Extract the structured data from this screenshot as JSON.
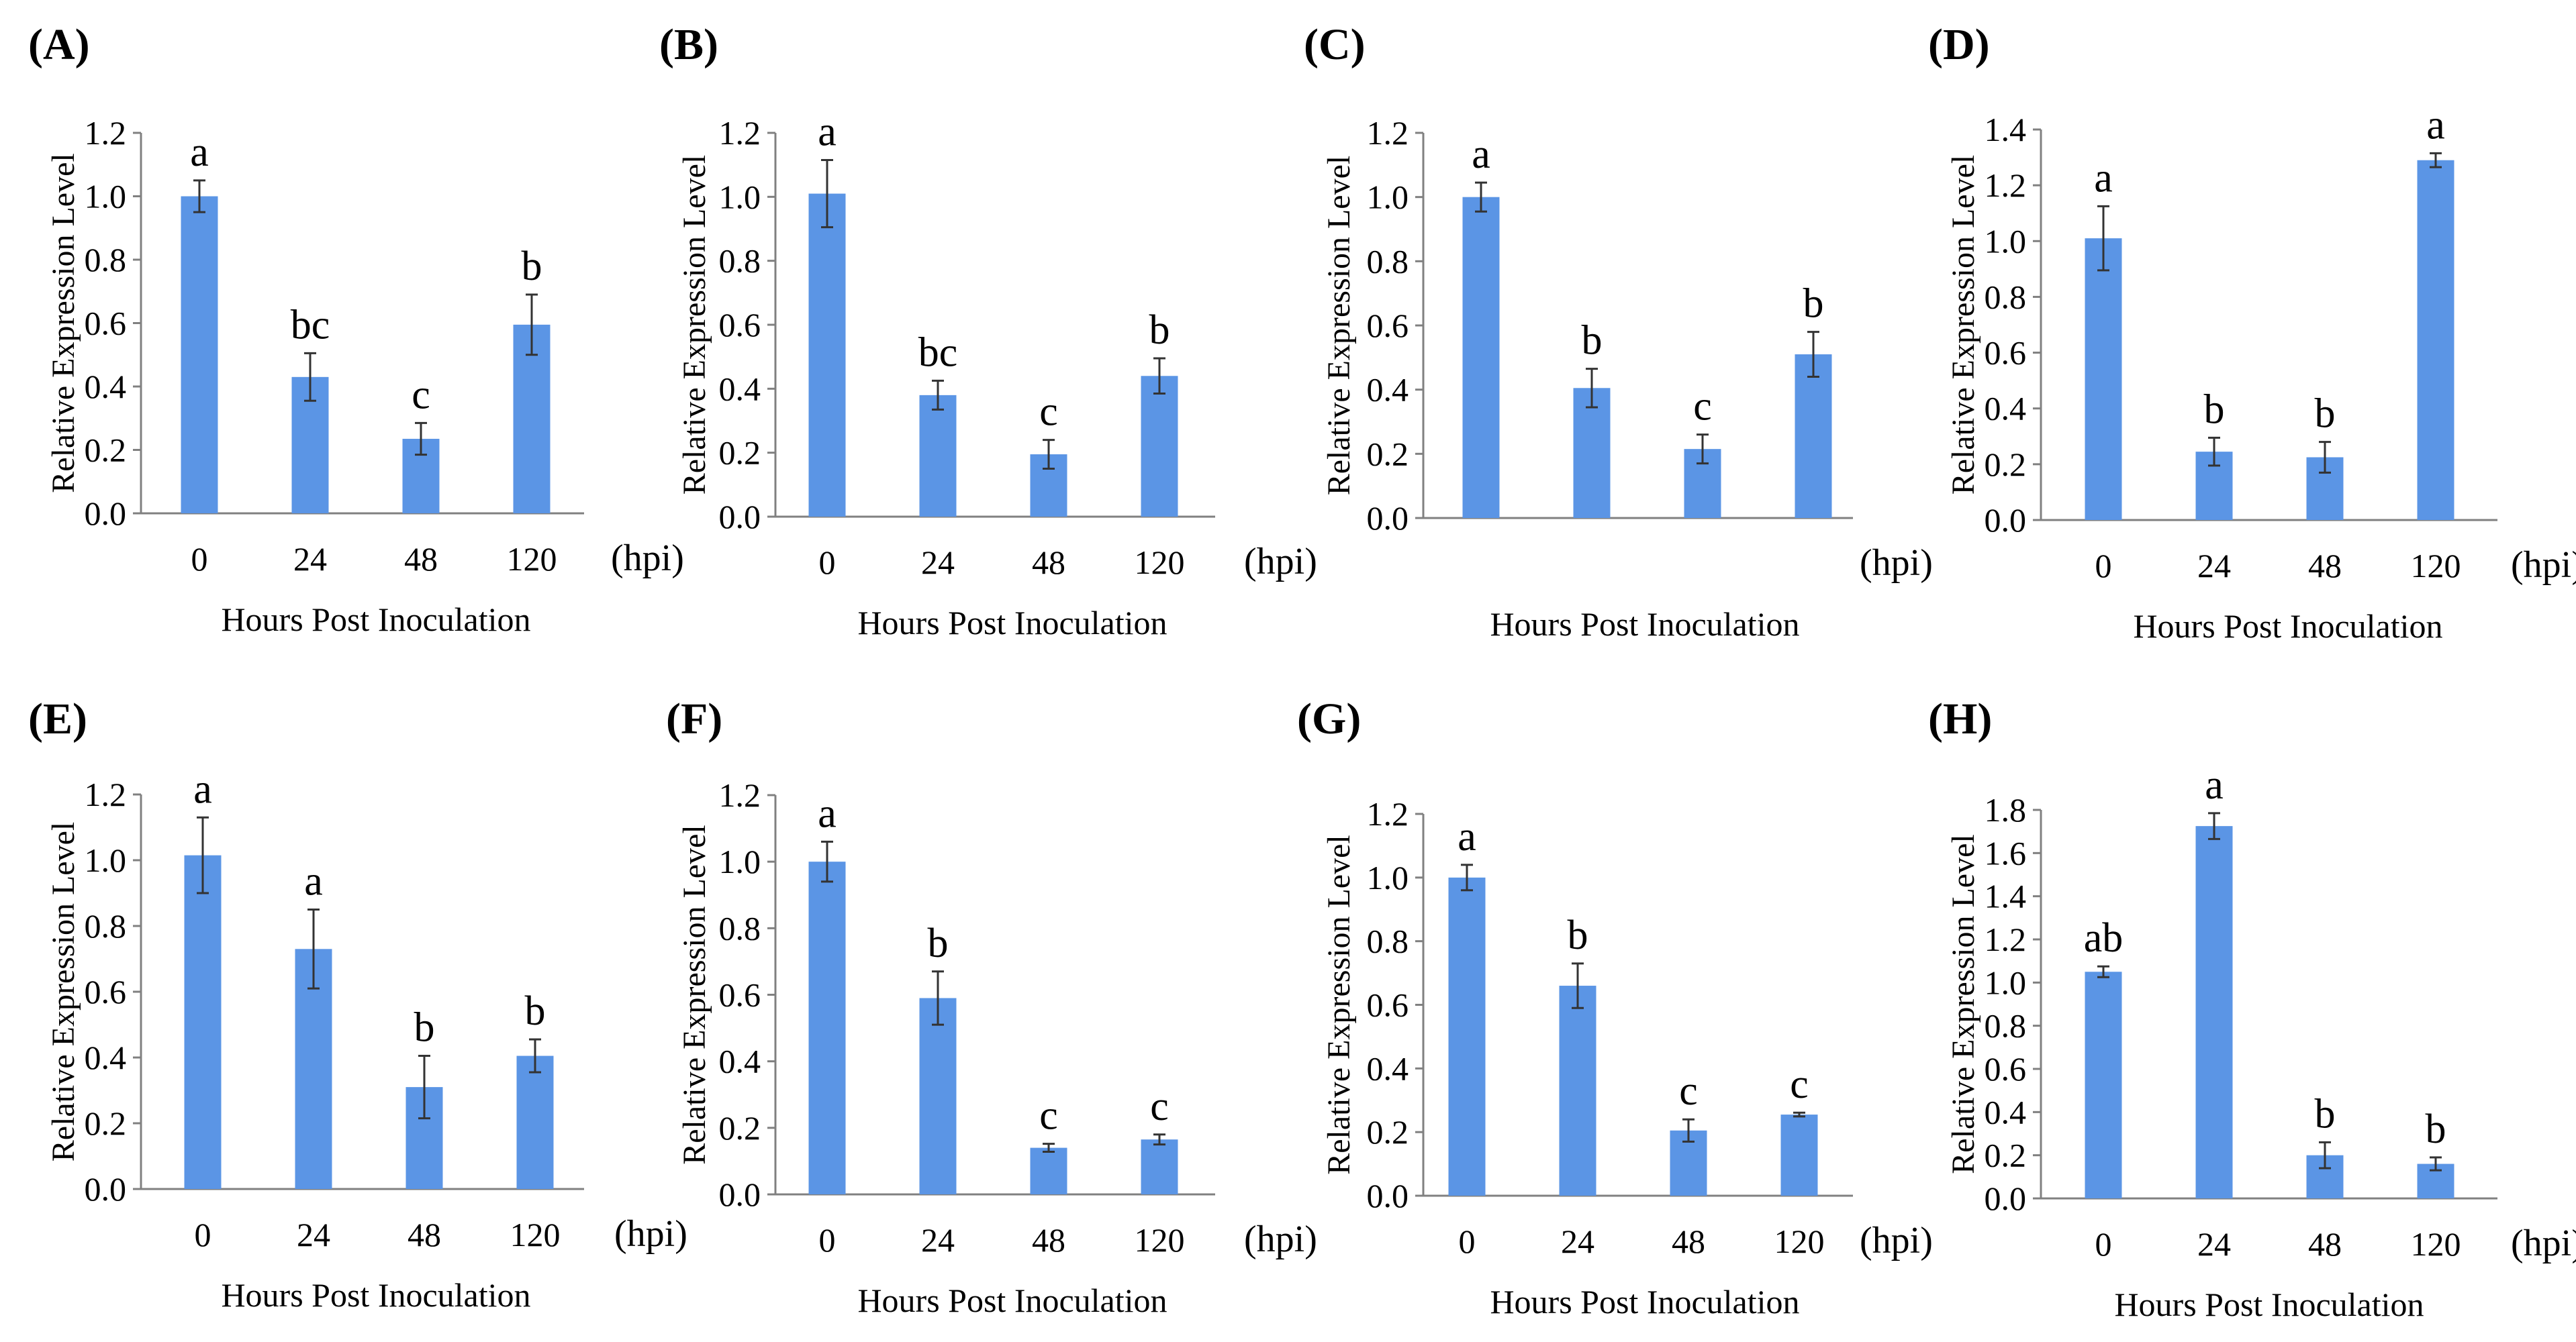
{
  "figure": {
    "bar_color": "#5B95E5",
    "axis_color": "#808080",
    "text_color": "#000000"
  },
  "chart_data": [
    {
      "panel": "(A)",
      "type": "bar",
      "ylabel": "Relative Expression Level",
      "xlabel": "Hours Post Inoculation",
      "unit_label": "(hpi)",
      "categories": [
        "0",
        "24",
        "48",
        "120"
      ],
      "values": [
        1.0,
        0.43,
        0.235,
        0.595
      ],
      "errors": [
        0.05,
        0.075,
        0.05,
        0.095
      ],
      "letters": [
        "a",
        "bc",
        "c",
        "b"
      ],
      "ylim": [
        0,
        1.2
      ],
      "yticks": [
        "0.0",
        "0.2",
        "0.4",
        "0.6",
        "0.8",
        "1.0",
        "1.2"
      ]
    },
    {
      "panel": "(B)",
      "type": "bar",
      "ylabel": "Relative Expression Level",
      "xlabel": "Hours Post Inoculation",
      "unit_label": "(hpi)",
      "categories": [
        "0",
        "24",
        "48",
        "120"
      ],
      "values": [
        1.01,
        0.38,
        0.195,
        0.44
      ],
      "errors": [
        0.105,
        0.045,
        0.045,
        0.055
      ],
      "letters": [
        "a",
        "bc",
        "c",
        "b"
      ],
      "ylim": [
        0,
        1.2
      ],
      "yticks": [
        "0.0",
        "0.2",
        "0.4",
        "0.6",
        "0.8",
        "1.0",
        "1.2"
      ]
    },
    {
      "panel": "(C)",
      "type": "bar",
      "ylabel": "Relative Expression Level",
      "xlabel": "Hours Post Inoculation",
      "unit_label": "(hpi)",
      "categories": [
        "",
        "",
        "",
        ""
      ],
      "values": [
        1.0,
        0.405,
        0.215,
        0.51
      ],
      "errors": [
        0.045,
        0.06,
        0.045,
        0.07
      ],
      "letters": [
        "a",
        "b",
        "c",
        "b"
      ],
      "ylim": [
        0,
        1.2
      ],
      "yticks": [
        "0.0",
        "0.2",
        "0.4",
        "0.6",
        "0.8",
        "1.0",
        "1.2"
      ]
    },
    {
      "panel": "(D)",
      "type": "bar",
      "ylabel": "Relative Expression Level",
      "xlabel": "Hours Post Inoculation",
      "unit_label": "(hpi)",
      "categories": [
        "0",
        "24",
        "48",
        "120"
      ],
      "values": [
        1.01,
        0.245,
        0.225,
        1.29
      ],
      "errors": [
        0.115,
        0.05,
        0.055,
        0.025
      ],
      "letters": [
        "a",
        "b",
        "b",
        "a"
      ],
      "ylim": [
        0,
        1.4
      ],
      "yticks": [
        "0.0",
        "0.2",
        "0.4",
        "0.6",
        "0.8",
        "1.0",
        "1.2",
        "1.4"
      ]
    },
    {
      "panel": "(E)",
      "type": "bar",
      "ylabel": "Relative Expression Level",
      "xlabel": "Hours Post Inoculation",
      "unit_label": "(hpi)",
      "categories": [
        "0",
        "24",
        "48",
        "120"
      ],
      "values": [
        1.015,
        0.73,
        0.31,
        0.405
      ],
      "errors": [
        0.115,
        0.12,
        0.095,
        0.05
      ],
      "letters": [
        "a",
        "a",
        "b",
        "b"
      ],
      "ylim": [
        0,
        1.2
      ],
      "yticks": [
        "0.0",
        "0.2",
        "0.4",
        "0.6",
        "0.8",
        "1.0",
        "1.2"
      ]
    },
    {
      "panel": "(F)",
      "type": "bar",
      "ylabel": "Relative Expression Level",
      "xlabel": "Hours Post Inoculation",
      "unit_label": "(hpi)",
      "categories": [
        "0",
        "24",
        "48",
        "120"
      ],
      "values": [
        1.0,
        0.59,
        0.14,
        0.165
      ],
      "errors": [
        0.06,
        0.08,
        0.012,
        0.015
      ],
      "letters": [
        "a",
        "b",
        "c",
        "c"
      ],
      "ylim": [
        0,
        1.2
      ],
      "yticks": [
        "0.0",
        "0.2",
        "0.4",
        "0.6",
        "0.8",
        "1.0",
        "1.2"
      ]
    },
    {
      "panel": "(G)",
      "type": "bar",
      "ylabel": "Relative Expression Level",
      "xlabel": "Hours Post Inoculation",
      "unit_label": "(hpi)",
      "categories": [
        "0",
        "24",
        "48",
        "120"
      ],
      "values": [
        1.0,
        0.66,
        0.205,
        0.255
      ],
      "errors": [
        0.04,
        0.07,
        0.035,
        0.006
      ],
      "letters": [
        "a",
        "b",
        "c",
        "c"
      ],
      "ylim": [
        0,
        1.2
      ],
      "yticks": [
        "0.0",
        "0.2",
        "0.4",
        "0.6",
        "0.8",
        "1.0",
        "1.2"
      ]
    },
    {
      "panel": "(H)",
      "type": "bar",
      "ylabel": "Relative Expression Level",
      "xlabel": "Hours Post Inoculation",
      "unit_label": "(hpi)",
      "categories": [
        "0",
        "24",
        "48",
        "120"
      ],
      "values": [
        1.05,
        1.725,
        0.2,
        0.16
      ],
      "errors": [
        0.025,
        0.06,
        0.06,
        0.03
      ],
      "letters": [
        "ab",
        "a",
        "b",
        "b"
      ],
      "ylim": [
        0,
        1.8
      ],
      "yticks": [
        "0.0",
        "0.2",
        "0.4",
        "0.6",
        "0.8",
        "1.0",
        "1.2",
        "1.4",
        "1.6",
        "1.8"
      ]
    }
  ]
}
